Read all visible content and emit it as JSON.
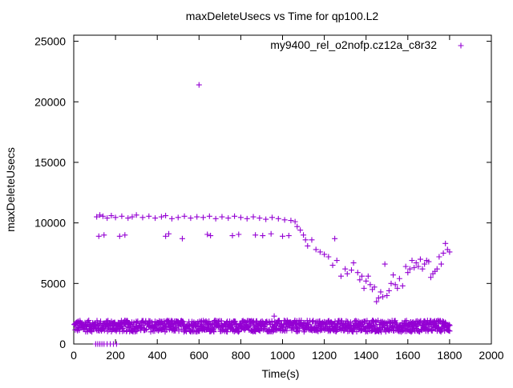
{
  "chart_data": {
    "type": "scatter",
    "title": "maxDeleteUsecs vs Time for qp100.L2",
    "xlabel": "Time(s)",
    "ylabel": "maxDeleteUsecs",
    "xlim": [
      0,
      2000
    ],
    "ylim": [
      0,
      25500
    ],
    "xticks": [
      0,
      200,
      400,
      600,
      800,
      1000,
      1200,
      1400,
      1600,
      1800,
      2000
    ],
    "yticks": [
      0,
      5000,
      10000,
      15000,
      20000,
      25000
    ],
    "grid": false,
    "legend": "top-right",
    "series": [
      {
        "name": "my9400_rel_o2nofp.cz12a_c8r32",
        "color": "#9400d3",
        "marker": "+",
        "points": [
          [
            600,
            21400
          ],
          [
            110,
            10500
          ],
          [
            125,
            10650
          ],
          [
            140,
            10550
          ],
          [
            160,
            10400
          ],
          [
            180,
            10600
          ],
          [
            200,
            10450
          ],
          [
            230,
            10550
          ],
          [
            260,
            10400
          ],
          [
            280,
            10500
          ],
          [
            300,
            10650
          ],
          [
            330,
            10450
          ],
          [
            360,
            10550
          ],
          [
            390,
            10400
          ],
          [
            420,
            10500
          ],
          [
            440,
            10600
          ],
          [
            470,
            10350
          ],
          [
            500,
            10450
          ],
          [
            530,
            10550
          ],
          [
            560,
            10400
          ],
          [
            590,
            10500
          ],
          [
            620,
            10450
          ],
          [
            650,
            10550
          ],
          [
            680,
            10350
          ],
          [
            710,
            10500
          ],
          [
            740,
            10400
          ],
          [
            770,
            10550
          ],
          [
            800,
            10450
          ],
          [
            830,
            10350
          ],
          [
            860,
            10500
          ],
          [
            890,
            10400
          ],
          [
            920,
            10300
          ],
          [
            950,
            10450
          ],
          [
            980,
            10350
          ],
          [
            1010,
            10250
          ],
          [
            1040,
            10200
          ],
          [
            1060,
            10100
          ],
          [
            120,
            8900
          ],
          [
            145,
            9000
          ],
          [
            220,
            8900
          ],
          [
            245,
            9000
          ],
          [
            440,
            8900
          ],
          [
            455,
            9100
          ],
          [
            520,
            8700
          ],
          [
            640,
            9050
          ],
          [
            655,
            8950
          ],
          [
            760,
            8950
          ],
          [
            790,
            9050
          ],
          [
            870,
            9000
          ],
          [
            905,
            8950
          ],
          [
            945,
            9100
          ],
          [
            1000,
            8900
          ],
          [
            1030,
            8950
          ],
          [
            1070,
            9700
          ],
          [
            1085,
            9400
          ],
          [
            1100,
            9000
          ],
          [
            1110,
            8600
          ],
          [
            1120,
            8100
          ],
          [
            1140,
            8600
          ],
          [
            1160,
            7800
          ],
          [
            1180,
            7600
          ],
          [
            1200,
            7400
          ],
          [
            1220,
            7200
          ],
          [
            1240,
            6500
          ],
          [
            1250,
            8700
          ],
          [
            1260,
            6900
          ],
          [
            1280,
            5600
          ],
          [
            1300,
            6200
          ],
          [
            1310,
            5800
          ],
          [
            1330,
            6100
          ],
          [
            1340,
            6700
          ],
          [
            1360,
            5900
          ],
          [
            1370,
            5300
          ],
          [
            1380,
            5600
          ],
          [
            1390,
            4600
          ],
          [
            1400,
            5200
          ],
          [
            1410,
            5600
          ],
          [
            1420,
            4900
          ],
          [
            1430,
            4500
          ],
          [
            1440,
            4700
          ],
          [
            1450,
            3500
          ],
          [
            1460,
            3800
          ],
          [
            1470,
            4300
          ],
          [
            1480,
            3900
          ],
          [
            1490,
            6600
          ],
          [
            1500,
            4000
          ],
          [
            1510,
            4400
          ],
          [
            1520,
            5000
          ],
          [
            1530,
            5700
          ],
          [
            1540,
            4900
          ],
          [
            1550,
            4600
          ],
          [
            1560,
            5400
          ],
          [
            1575,
            4800
          ],
          [
            1590,
            6400
          ],
          [
            1600,
            5900
          ],
          [
            1610,
            6200
          ],
          [
            1620,
            6900
          ],
          [
            1630,
            6300
          ],
          [
            1640,
            6700
          ],
          [
            1650,
            6400
          ],
          [
            1660,
            7000
          ],
          [
            1670,
            6200
          ],
          [
            1680,
            6600
          ],
          [
            1690,
            6900
          ],
          [
            1700,
            6800
          ],
          [
            1710,
            5500
          ],
          [
            1720,
            5800
          ],
          [
            1730,
            6000
          ],
          [
            1740,
            6200
          ],
          [
            1750,
            7200
          ],
          [
            1760,
            6600
          ],
          [
            1770,
            7500
          ],
          [
            1780,
            8300
          ],
          [
            1790,
            7800
          ],
          [
            1800,
            7600
          ],
          [
            960,
            2300
          ],
          [
            410,
            1900
          ],
          [
            1680,
            1900
          ],
          [
            105,
            0
          ],
          [
            115,
            0
          ],
          [
            125,
            0
          ],
          [
            135,
            0
          ],
          [
            145,
            0
          ],
          [
            160,
            0
          ],
          [
            175,
            0
          ],
          [
            190,
            0
          ],
          [
            205,
            0
          ]
        ]
      }
    ]
  }
}
